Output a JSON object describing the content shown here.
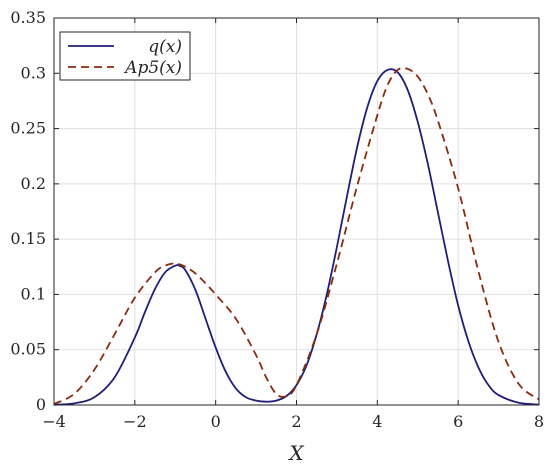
{
  "chart_data": {
    "type": "line",
    "xlabel": "X",
    "ylabel": "",
    "xlim": [
      -4,
      8
    ],
    "ylim": [
      0,
      0.35
    ],
    "xticks": [
      -4,
      -2,
      0,
      2,
      4,
      6,
      8
    ],
    "xtick_labels": [
      "−4",
      "−2",
      "0",
      "2",
      "4",
      "6",
      "8"
    ],
    "yticks": [
      0,
      0.05,
      0.1,
      0.15,
      0.2,
      0.25,
      0.3,
      0.35
    ],
    "ytick_labels": [
      "0",
      "0.05",
      "0.1",
      "0.15",
      "0.2",
      "0.25",
      "0.3",
      "0.35"
    ],
    "grid": true,
    "legend_position": "top-left",
    "series": [
      {
        "name": "q(x)",
        "style": "solid",
        "color": "#1f1f7a",
        "x": [
          -4.0,
          -3.5,
          -3.0,
          -2.5,
          -2.0,
          -1.75,
          -1.5,
          -1.25,
          -1.0,
          -0.9,
          -0.75,
          -0.5,
          -0.25,
          0.0,
          0.25,
          0.5,
          0.75,
          1.0,
          1.25,
          1.5,
          1.75,
          2.0,
          2.25,
          2.5,
          2.75,
          3.0,
          3.25,
          3.5,
          3.75,
          4.0,
          4.25,
          4.5,
          4.75,
          5.0,
          5.25,
          5.5,
          5.75,
          6.0,
          6.25,
          6.5,
          6.75,
          7.0,
          7.5,
          8.0
        ],
        "y": [
          0.0003,
          0.0015,
          0.007,
          0.025,
          0.061,
          0.084,
          0.105,
          0.12,
          0.126,
          0.126,
          0.122,
          0.104,
          0.078,
          0.052,
          0.03,
          0.015,
          0.007,
          0.004,
          0.003,
          0.004,
          0.008,
          0.018,
          0.036,
          0.064,
          0.1,
          0.143,
          0.189,
          0.233,
          0.269,
          0.293,
          0.303,
          0.301,
          0.285,
          0.256,
          0.218,
          0.174,
          0.13,
          0.09,
          0.058,
          0.034,
          0.018,
          0.009,
          0.002,
          0.0004
        ]
      },
      {
        "name": "Ap5(x)",
        "style": "dashed",
        "color": "#8b2a0c",
        "x": [
          -4.0,
          -3.5,
          -3.0,
          -2.5,
          -2.0,
          -1.5,
          -1.25,
          -1.0,
          -0.75,
          -0.5,
          -0.25,
          0.0,
          0.5,
          1.0,
          1.25,
          1.5,
          1.75,
          2.0,
          2.5,
          3.0,
          3.5,
          4.0,
          4.25,
          4.5,
          4.75,
          5.0,
          5.25,
          5.5,
          6.0,
          6.5,
          7.0,
          7.5,
          8.0
        ],
        "y": [
          0.001,
          0.01,
          0.032,
          0.064,
          0.097,
          0.12,
          0.126,
          0.128,
          0.125,
          0.119,
          0.11,
          0.1,
          0.078,
          0.045,
          0.025,
          0.01,
          0.008,
          0.018,
          0.064,
          0.128,
          0.198,
          0.262,
          0.289,
          0.303,
          0.304,
          0.297,
          0.281,
          0.257,
          0.196,
          0.121,
          0.057,
          0.019,
          0.005
        ]
      }
    ]
  }
}
